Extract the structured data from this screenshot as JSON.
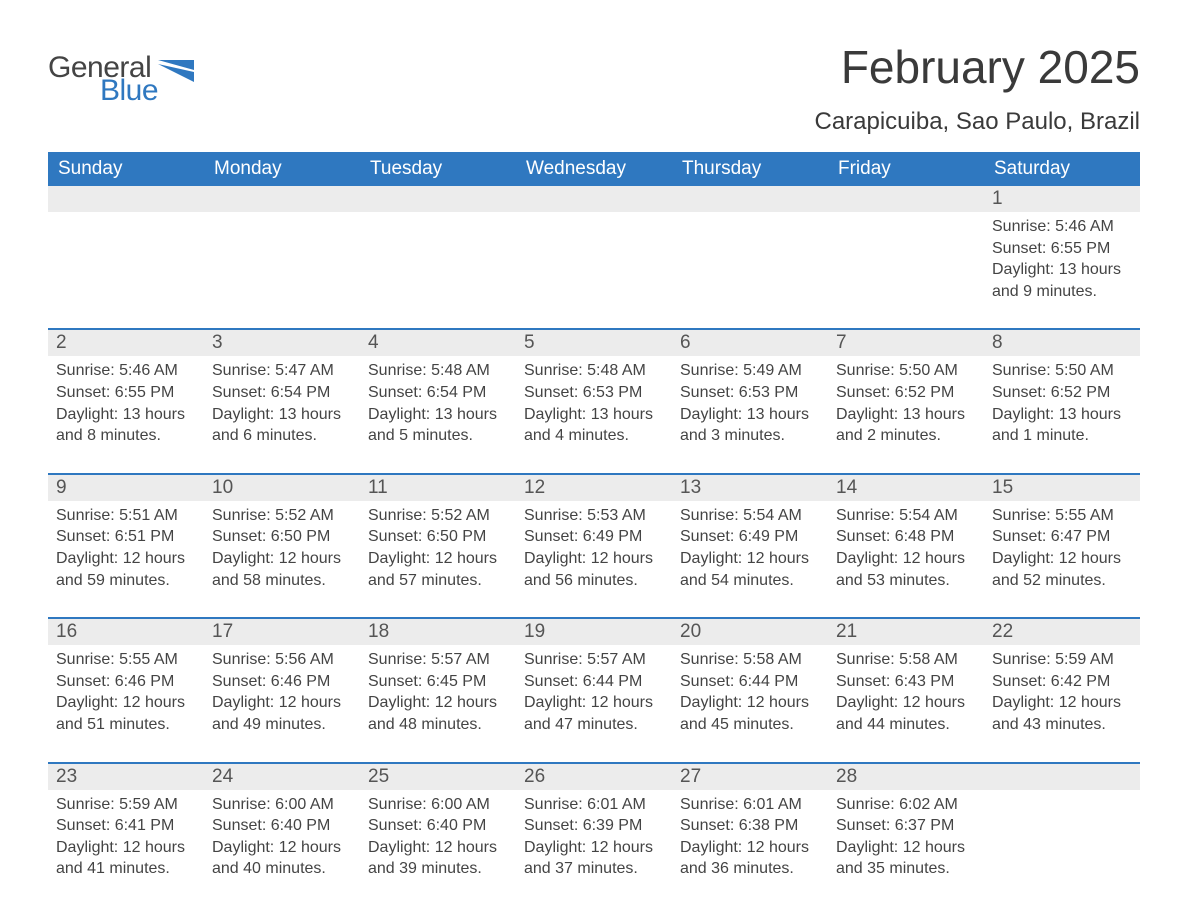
{
  "logo": {
    "general": "General",
    "blue": "Blue",
    "flag_color": "#2f78c0"
  },
  "title": "February 2025",
  "location": "Carapicuiba, Sao Paulo, Brazil",
  "colors": {
    "header_bg": "#2f78c0",
    "header_text": "#ffffff",
    "daynum_bg": "#ececec",
    "text": "#3a3a3a",
    "rule": "#2f78c0"
  },
  "weekdays": [
    "Sunday",
    "Monday",
    "Tuesday",
    "Wednesday",
    "Thursday",
    "Friday",
    "Saturday"
  ],
  "weeks": [
    [
      {
        "n": "",
        "sunrise": "",
        "sunset": "",
        "daylight": ""
      },
      {
        "n": "",
        "sunrise": "",
        "sunset": "",
        "daylight": ""
      },
      {
        "n": "",
        "sunrise": "",
        "sunset": "",
        "daylight": ""
      },
      {
        "n": "",
        "sunrise": "",
        "sunset": "",
        "daylight": ""
      },
      {
        "n": "",
        "sunrise": "",
        "sunset": "",
        "daylight": ""
      },
      {
        "n": "",
        "sunrise": "",
        "sunset": "",
        "daylight": ""
      },
      {
        "n": "1",
        "sunrise": "Sunrise: 5:46 AM",
        "sunset": "Sunset: 6:55 PM",
        "daylight": "Daylight: 13 hours and 9 minutes."
      }
    ],
    [
      {
        "n": "2",
        "sunrise": "Sunrise: 5:46 AM",
        "sunset": "Sunset: 6:55 PM",
        "daylight": "Daylight: 13 hours and 8 minutes."
      },
      {
        "n": "3",
        "sunrise": "Sunrise: 5:47 AM",
        "sunset": "Sunset: 6:54 PM",
        "daylight": "Daylight: 13 hours and 6 minutes."
      },
      {
        "n": "4",
        "sunrise": "Sunrise: 5:48 AM",
        "sunset": "Sunset: 6:54 PM",
        "daylight": "Daylight: 13 hours and 5 minutes."
      },
      {
        "n": "5",
        "sunrise": "Sunrise: 5:48 AM",
        "sunset": "Sunset: 6:53 PM",
        "daylight": "Daylight: 13 hours and 4 minutes."
      },
      {
        "n": "6",
        "sunrise": "Sunrise: 5:49 AM",
        "sunset": "Sunset: 6:53 PM",
        "daylight": "Daylight: 13 hours and 3 minutes."
      },
      {
        "n": "7",
        "sunrise": "Sunrise: 5:50 AM",
        "sunset": "Sunset: 6:52 PM",
        "daylight": "Daylight: 13 hours and 2 minutes."
      },
      {
        "n": "8",
        "sunrise": "Sunrise: 5:50 AM",
        "sunset": "Sunset: 6:52 PM",
        "daylight": "Daylight: 13 hours and 1 minute."
      }
    ],
    [
      {
        "n": "9",
        "sunrise": "Sunrise: 5:51 AM",
        "sunset": "Sunset: 6:51 PM",
        "daylight": "Daylight: 12 hours and 59 minutes."
      },
      {
        "n": "10",
        "sunrise": "Sunrise: 5:52 AM",
        "sunset": "Sunset: 6:50 PM",
        "daylight": "Daylight: 12 hours and 58 minutes."
      },
      {
        "n": "11",
        "sunrise": "Sunrise: 5:52 AM",
        "sunset": "Sunset: 6:50 PM",
        "daylight": "Daylight: 12 hours and 57 minutes."
      },
      {
        "n": "12",
        "sunrise": "Sunrise: 5:53 AM",
        "sunset": "Sunset: 6:49 PM",
        "daylight": "Daylight: 12 hours and 56 minutes."
      },
      {
        "n": "13",
        "sunrise": "Sunrise: 5:54 AM",
        "sunset": "Sunset: 6:49 PM",
        "daylight": "Daylight: 12 hours and 54 minutes."
      },
      {
        "n": "14",
        "sunrise": "Sunrise: 5:54 AM",
        "sunset": "Sunset: 6:48 PM",
        "daylight": "Daylight: 12 hours and 53 minutes."
      },
      {
        "n": "15",
        "sunrise": "Sunrise: 5:55 AM",
        "sunset": "Sunset: 6:47 PM",
        "daylight": "Daylight: 12 hours and 52 minutes."
      }
    ],
    [
      {
        "n": "16",
        "sunrise": "Sunrise: 5:55 AM",
        "sunset": "Sunset: 6:46 PM",
        "daylight": "Daylight: 12 hours and 51 minutes."
      },
      {
        "n": "17",
        "sunrise": "Sunrise: 5:56 AM",
        "sunset": "Sunset: 6:46 PM",
        "daylight": "Daylight: 12 hours and 49 minutes."
      },
      {
        "n": "18",
        "sunrise": "Sunrise: 5:57 AM",
        "sunset": "Sunset: 6:45 PM",
        "daylight": "Daylight: 12 hours and 48 minutes."
      },
      {
        "n": "19",
        "sunrise": "Sunrise: 5:57 AM",
        "sunset": "Sunset: 6:44 PM",
        "daylight": "Daylight: 12 hours and 47 minutes."
      },
      {
        "n": "20",
        "sunrise": "Sunrise: 5:58 AM",
        "sunset": "Sunset: 6:44 PM",
        "daylight": "Daylight: 12 hours and 45 minutes."
      },
      {
        "n": "21",
        "sunrise": "Sunrise: 5:58 AM",
        "sunset": "Sunset: 6:43 PM",
        "daylight": "Daylight: 12 hours and 44 minutes."
      },
      {
        "n": "22",
        "sunrise": "Sunrise: 5:59 AM",
        "sunset": "Sunset: 6:42 PM",
        "daylight": "Daylight: 12 hours and 43 minutes."
      }
    ],
    [
      {
        "n": "23",
        "sunrise": "Sunrise: 5:59 AM",
        "sunset": "Sunset: 6:41 PM",
        "daylight": "Daylight: 12 hours and 41 minutes."
      },
      {
        "n": "24",
        "sunrise": "Sunrise: 6:00 AM",
        "sunset": "Sunset: 6:40 PM",
        "daylight": "Daylight: 12 hours and 40 minutes."
      },
      {
        "n": "25",
        "sunrise": "Sunrise: 6:00 AM",
        "sunset": "Sunset: 6:40 PM",
        "daylight": "Daylight: 12 hours and 39 minutes."
      },
      {
        "n": "26",
        "sunrise": "Sunrise: 6:01 AM",
        "sunset": "Sunset: 6:39 PM",
        "daylight": "Daylight: 12 hours and 37 minutes."
      },
      {
        "n": "27",
        "sunrise": "Sunrise: 6:01 AM",
        "sunset": "Sunset: 6:38 PM",
        "daylight": "Daylight: 12 hours and 36 minutes."
      },
      {
        "n": "28",
        "sunrise": "Sunrise: 6:02 AM",
        "sunset": "Sunset: 6:37 PM",
        "daylight": "Daylight: 12 hours and 35 minutes."
      },
      {
        "n": "",
        "sunrise": "",
        "sunset": "",
        "daylight": ""
      }
    ]
  ]
}
